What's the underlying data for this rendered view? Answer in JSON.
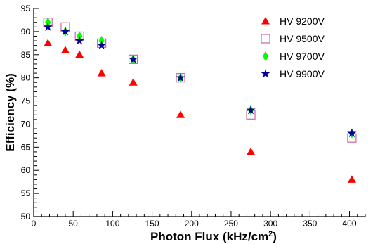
{
  "chart_data": {
    "type": "scatter",
    "xlabel": "Photon Flux (kHz/cm",
    "xlabel_sup": "2",
    "xlabel_end": ")",
    "ylabel": "Efficiency (%)",
    "xlim": [
      0,
      420
    ],
    "ylim": [
      50,
      95
    ],
    "xticks": [
      0,
      50,
      100,
      150,
      200,
      250,
      300,
      350,
      400
    ],
    "yticks": [
      50,
      55,
      60,
      65,
      70,
      75,
      80,
      85,
      90,
      95
    ],
    "grid": false,
    "legend_position": "top-right",
    "series": [
      {
        "name": "HV 9200V",
        "marker": "triangle",
        "color": "#ff0000",
        "x": [
          18,
          40,
          58,
          86,
          126,
          186,
          275,
          403
        ],
        "y": [
          87.5,
          86,
          85,
          81,
          79,
          72,
          64,
          58
        ]
      },
      {
        "name": "HV 9500V",
        "marker": "square-open",
        "color": "#cc66aa",
        "x": [
          18,
          40,
          58,
          86,
          126,
          186,
          275,
          403
        ],
        "y": [
          92,
          91,
          89,
          87.5,
          84,
          80,
          72,
          67
        ]
      },
      {
        "name": "HV 9700V",
        "marker": "diamond",
        "color": "#00ff00",
        "x": [
          18,
          40,
          58,
          86,
          126,
          186,
          275,
          403
        ],
        "y": [
          92,
          90,
          89,
          88,
          84,
          80,
          73,
          68
        ]
      },
      {
        "name": "HV 9900V",
        "marker": "star",
        "color": "#000099",
        "x": [
          18,
          40,
          58,
          86,
          126,
          186,
          275,
          403
        ],
        "y": [
          91,
          90,
          88,
          87,
          84,
          80,
          73,
          68
        ]
      }
    ]
  }
}
